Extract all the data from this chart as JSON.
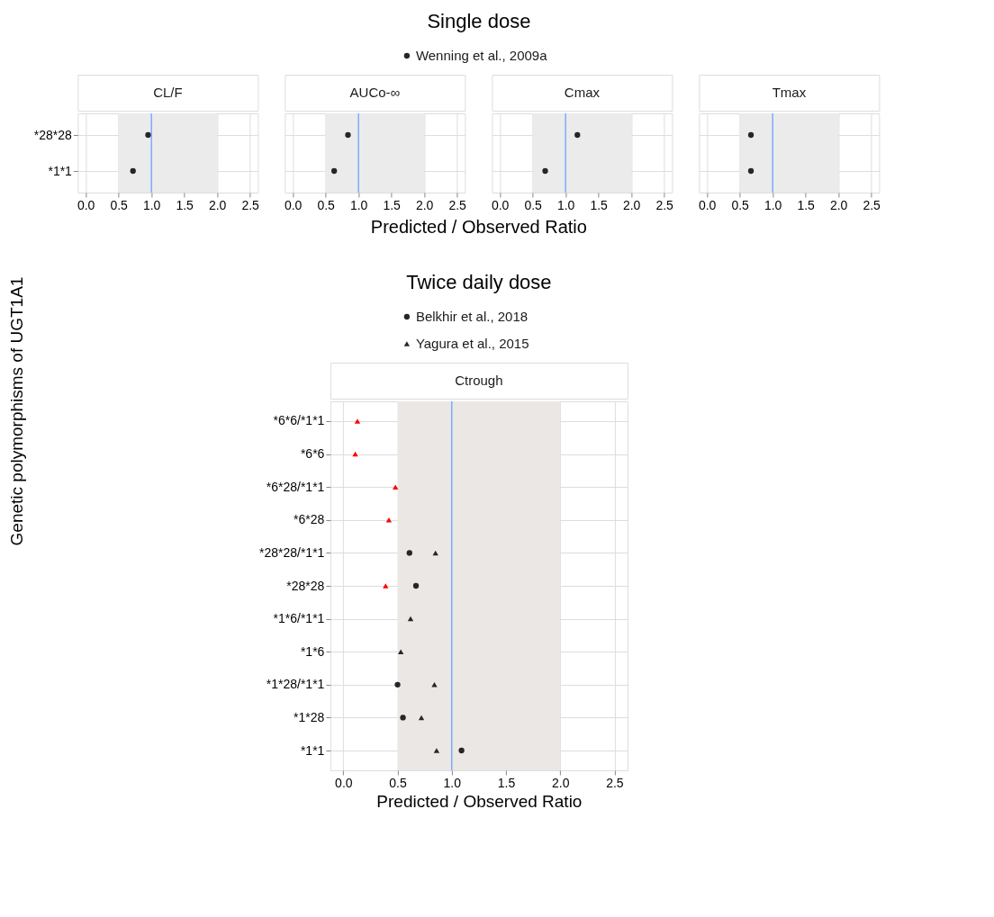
{
  "chart_data": [
    {
      "type": "scatter",
      "orientation": "horizontal",
      "title": "CL/F",
      "annotations": [
        "Single dose"
      ],
      "ylabel": "Genetic polymorphisms of UGT1A1",
      "legend": "top",
      "grid": true,
      "categories": [
        "*28*28",
        "*1*1"
      ],
      "series": [
        {
          "name": "Wenning et al., 2009a",
          "color": "#262626",
          "marker": "circle",
          "values": [
            0.95,
            0.72
          ]
        }
      ],
      "xlim": [
        -0.12,
        2.62
      ],
      "xticks": [
        {
          "value": 0,
          "label": "0.0"
        },
        {
          "value": 0.5,
          "label": "0.5"
        },
        {
          "value": 1,
          "label": "1.0"
        },
        {
          "value": 1.5,
          "label": "1.5"
        },
        {
          "value": 2,
          "label": "2.0"
        },
        {
          "value": 2.5,
          "label": "2.5"
        }
      ],
      "ref_lines": [
        {
          "axis": "x",
          "value": 1,
          "color": "#619cff"
        }
      ],
      "bands": [
        {
          "axis": "x",
          "from": 0.5,
          "to": 2,
          "color": "#ebebeb"
        }
      ]
    },
    {
      "type": "scatter",
      "orientation": "horizontal",
      "title": "AUCo-∞",
      "xlabel": "Predicted / Observed Ratio",
      "grid": true,
      "tick_labels": "x",
      "categories": [
        null,
        null
      ],
      "series": [
        {
          "color": "#262626",
          "marker": "circle",
          "values": [
            0.84,
            0.63
          ]
        }
      ],
      "xlim": [
        -0.12,
        2.62
      ],
      "xticks": [
        {
          "value": 0,
          "label": "0.0"
        },
        {
          "value": 0.5,
          "label": "0.5"
        },
        {
          "value": 1,
          "label": "1.0"
        },
        {
          "value": 1.5,
          "label": "1.5"
        },
        {
          "value": 2,
          "label": "2.0"
        },
        {
          "value": 2.5,
          "label": "2.5"
        }
      ],
      "ref_lines": [
        {
          "axis": "x",
          "value": 1,
          "color": "#619cff"
        }
      ],
      "bands": [
        {
          "axis": "x",
          "from": 0.5,
          "to": 2,
          "color": "#ebebeb"
        }
      ]
    },
    {
      "type": "scatter",
      "orientation": "horizontal",
      "title": "Cmax",
      "grid": true,
      "tick_labels": "x",
      "categories": [
        null,
        null
      ],
      "series": [
        {
          "color": "#262626",
          "marker": "circle",
          "values": [
            1.18,
            0.69
          ]
        }
      ],
      "xlim": [
        -0.12,
        2.62
      ],
      "xticks": [
        {
          "value": 0,
          "label": "0.0"
        },
        {
          "value": 0.5,
          "label": "0.5"
        },
        {
          "value": 1,
          "label": "1.0"
        },
        {
          "value": 1.5,
          "label": "1.5"
        },
        {
          "value": 2,
          "label": "2.0"
        },
        {
          "value": 2.5,
          "label": "2.5"
        }
      ],
      "ref_lines": [
        {
          "axis": "x",
          "value": 1,
          "color": "#619cff"
        }
      ],
      "bands": [
        {
          "axis": "x",
          "from": 0.5,
          "to": 2,
          "color": "#ebebeb"
        }
      ]
    },
    {
      "type": "scatter",
      "orientation": "horizontal",
      "title": "Tmax",
      "grid": true,
      "tick_labels": "x",
      "categories": [
        null,
        null
      ],
      "series": [
        {
          "color": "#262626",
          "marker": "circle",
          "values": [
            0.67,
            0.67
          ]
        }
      ],
      "xlim": [
        -0.12,
        2.62
      ],
      "xticks": [
        {
          "value": 0,
          "label": "0.0"
        },
        {
          "value": 0.5,
          "label": "0.5"
        },
        {
          "value": 1,
          "label": "1.0"
        },
        {
          "value": 1.5,
          "label": "1.5"
        },
        {
          "value": 2,
          "label": "2.0"
        },
        {
          "value": 2.5,
          "label": "2.5"
        }
      ],
      "ref_lines": [
        {
          "axis": "x",
          "value": 1,
          "color": "#619cff"
        }
      ],
      "bands": [
        {
          "axis": "x",
          "from": 0.5,
          "to": 2,
          "color": "#ebebeb"
        }
      ]
    },
    {
      "type": "scatter",
      "orientation": "horizontal",
      "title": "Ctrough",
      "annotations": [
        "Twice daily dose"
      ],
      "xlabel": "Predicted / Observed Ratio",
      "legend": "top",
      "grid": true,
      "categories": [
        "*6*6/*1*1",
        "*6*6",
        "*6*28/*1*1",
        "*6*28",
        "*28*28/*1*1",
        "*28*28",
        "*1*6/*1*1",
        "*1*6",
        "*1*28/*1*1",
        "*1*28",
        "*1*1"
      ],
      "series": [
        {
          "name": "Belkhir et al., 2018",
          "color": "#262626",
          "marker": "circle",
          "values": [
            null,
            null,
            null,
            null,
            0.61,
            0.67,
            null,
            null,
            0.5,
            0.55,
            1.09
          ]
        },
        {
          "name": "Yagura et al., 2015",
          "color": "#262626",
          "marker": "triangle",
          "values": [
            0.13,
            0.11,
            0.48,
            0.42,
            0.85,
            0.39,
            0.62,
            0.53,
            0.84,
            0.72,
            0.86
          ],
          "colors": [
            "#ff0000",
            "#ff0000",
            "#ff0000",
            "#ff0000",
            "#262626",
            "#ff0000",
            "#262626",
            "#262626",
            "#262626",
            "#262626",
            "#262626"
          ]
        }
      ],
      "xlim": [
        -0.12,
        2.62
      ],
      "xticks": [
        {
          "value": 0,
          "label": "0.0"
        },
        {
          "value": 0.5,
          "label": "0.5"
        },
        {
          "value": 1,
          "label": "1.0"
        },
        {
          "value": 1.5,
          "label": "1.5"
        },
        {
          "value": 2,
          "label": "2.0"
        },
        {
          "value": 2.5,
          "label": "2.5"
        }
      ],
      "ref_lines": [
        {
          "axis": "x",
          "value": 1,
          "color": "#619cff"
        }
      ],
      "bands": [
        {
          "axis": "x",
          "from": 0.5,
          "to": 2,
          "color": "#ebe7e5"
        }
      ]
    }
  ]
}
